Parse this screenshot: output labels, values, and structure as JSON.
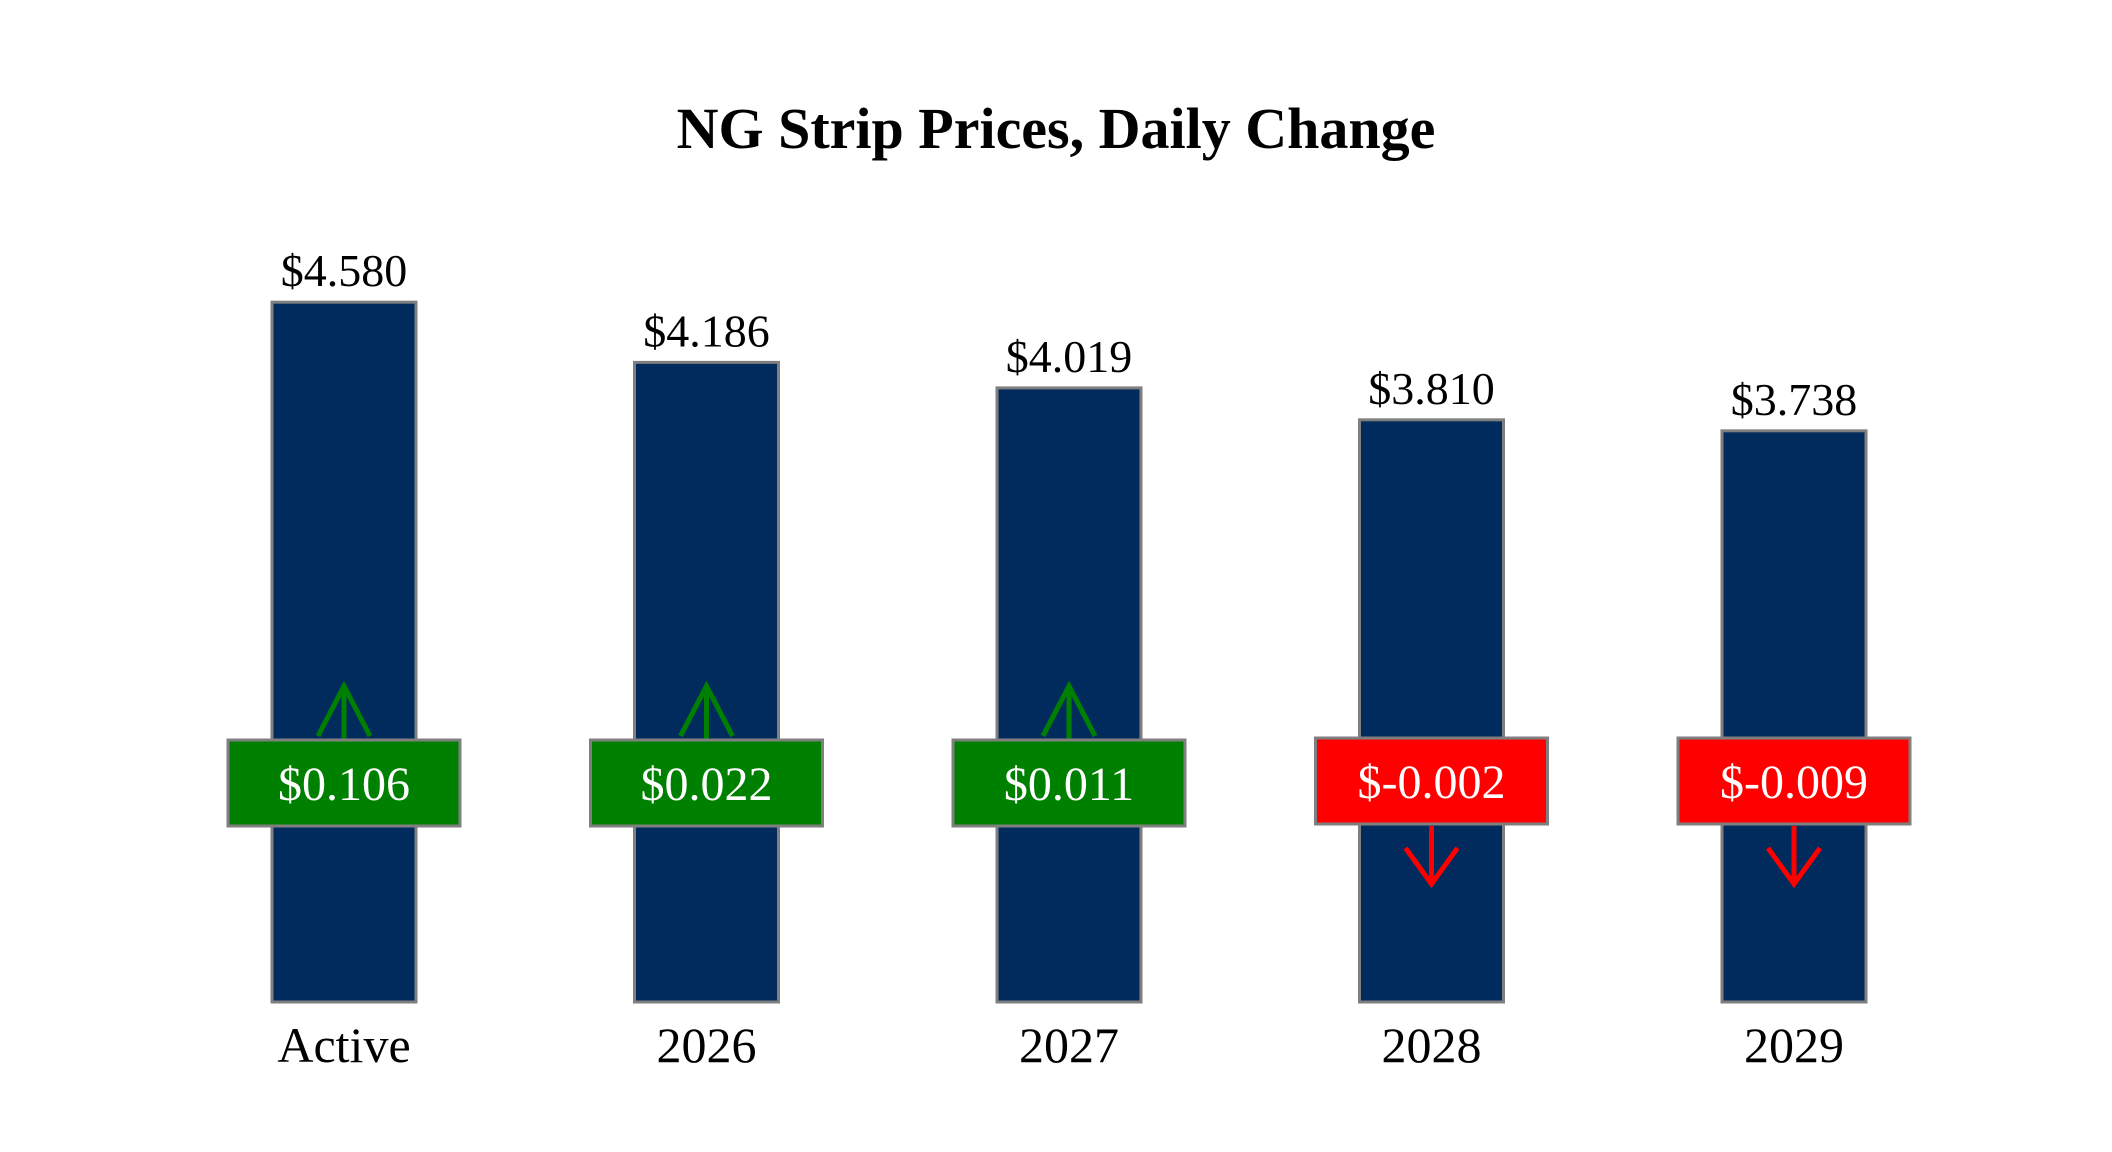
{
  "chart_data": {
    "type": "bar",
    "title": "NG Strip Prices, Daily Change",
    "xlabel": "",
    "ylabel": "",
    "ylim": [
      0,
      4.75
    ],
    "grid": false,
    "legend": "none",
    "categories": [
      "Active",
      "2026",
      "2027",
      "2028",
      "2029"
    ],
    "series": [
      {
        "values": [
          4.58,
          4.186,
          4.019,
          3.81,
          3.738
        ],
        "value_labels": [
          "$4.580",
          "$4.186",
          "$4.019",
          "$3.810",
          "$3.738"
        ]
      }
    ],
    "daily_change": {
      "values": [
        0.106,
        0.022,
        0.011,
        -0.002,
        -0.009
      ],
      "labels": [
        "$0.106",
        "$0.022",
        "$0.011",
        "$-0.002",
        "$-0.009"
      ]
    },
    "colors": {
      "bar": "#002B5C",
      "bar_edge": "#7F7F7F",
      "up": "#008000",
      "down": "#FF0000",
      "label_box_edge": "#7F7F7F"
    }
  }
}
